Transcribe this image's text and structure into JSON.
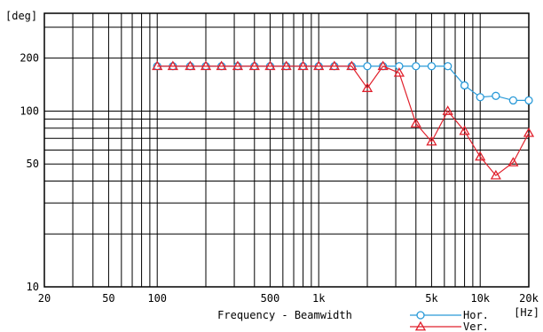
{
  "chart_data": {
    "type": "line",
    "title": "",
    "xlabel": "Frequency - Beamwidth",
    "ylabel": "",
    "x_unit": "[Hz]",
    "y_unit": "[deg]",
    "x_scale": "log",
    "y_scale": "log",
    "xlim": [
      20,
      20000
    ],
    "ylim": [
      10,
      360
    ],
    "grid": true,
    "legend_position": "bottom-right",
    "x_ticks": [
      {
        "value": 20,
        "label": "20"
      },
      {
        "value": 50,
        "label": "50"
      },
      {
        "value": 100,
        "label": "100"
      },
      {
        "value": 500,
        "label": "500"
      },
      {
        "value": 1000,
        "label": "1k"
      },
      {
        "value": 5000,
        "label": "5k"
      },
      {
        "value": 10000,
        "label": "10k"
      },
      {
        "value": 20000,
        "label": "20k"
      }
    ],
    "y_ticks": [
      {
        "value": 10,
        "label": "10"
      },
      {
        "value": 50,
        "label": "50"
      },
      {
        "value": 100,
        "label": "100"
      },
      {
        "value": 200,
        "label": "200"
      }
    ],
    "x": [
      100,
      125,
      160,
      200,
      250,
      315,
      400,
      500,
      630,
      800,
      1000,
      1250,
      1600,
      2000,
      2500,
      3150,
      4000,
      5000,
      6300,
      8000,
      10000,
      12500,
      16000,
      20000
    ],
    "series": [
      {
        "name": "Hor.",
        "color": "#2a9ad8",
        "marker": "circle",
        "values": [
          180,
          180,
          180,
          180,
          180,
          180,
          180,
          180,
          180,
          180,
          180,
          180,
          180,
          180,
          180,
          180,
          180,
          180,
          180,
          140,
          120,
          122,
          115,
          115
        ]
      },
      {
        "name": "Ver.",
        "color": "#e0202c",
        "marker": "triangle",
        "values": [
          180,
          180,
          180,
          180,
          180,
          180,
          180,
          180,
          180,
          180,
          180,
          180,
          180,
          135,
          180,
          165,
          85,
          67,
          100,
          77,
          55,
          43,
          51,
          75
        ]
      }
    ]
  }
}
